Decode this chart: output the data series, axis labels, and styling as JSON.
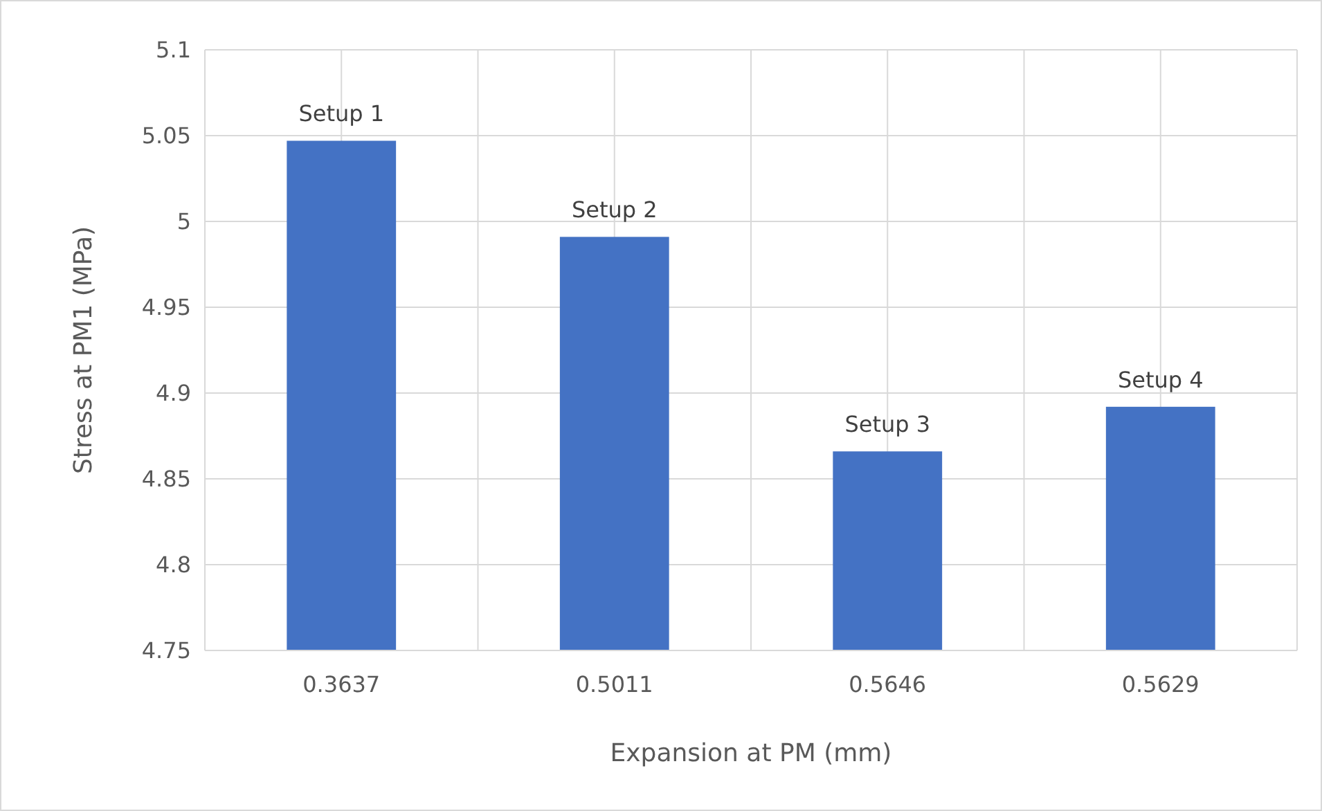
{
  "chart_data": {
    "type": "bar",
    "xlabel": "Expansion at PM (mm)",
    "ylabel": "Stress  at PM1 (MPa)",
    "categories": [
      "0.3637",
      "0.5011",
      "0.5646",
      "0.5629"
    ],
    "values": [
      5.047,
      4.991,
      4.866,
      4.892
    ],
    "color": "#4472c4",
    "ylim": [
      4.75,
      5.1
    ],
    "yticks": [
      {
        "value": 4.75,
        "label": "4.75"
      },
      {
        "value": 4.8,
        "label": "4.8"
      },
      {
        "value": 4.85,
        "label": "4.85"
      },
      {
        "value": 4.9,
        "label": "4.9"
      },
      {
        "value": 4.95,
        "label": "4.95"
      },
      {
        "value": 5,
        "label": "5"
      },
      {
        "value": 5.05,
        "label": "5.05"
      },
      {
        "value": 5.1,
        "label": "5.1"
      }
    ],
    "grid": true,
    "annotations": [
      {
        "text": "Setup 1",
        "x": "0.3637",
        "y": 5.047
      },
      {
        "text": "Setup 2",
        "x": "0.5011",
        "y": 4.991
      },
      {
        "text": "Setup 3",
        "x": "0.5646",
        "y": 4.866
      },
      {
        "text": "Setup 4",
        "x": "0.5629",
        "y": 4.892
      }
    ]
  }
}
